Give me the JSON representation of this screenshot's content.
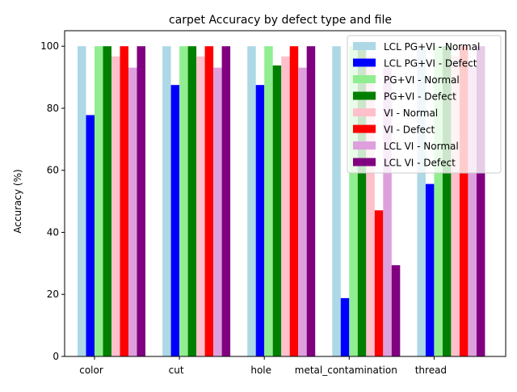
{
  "chart_data": {
    "type": "bar",
    "title": "carpet Accuracy by defect type and file",
    "xlabel": "",
    "ylabel": "Accuracy (%)",
    "ylim": [
      0,
      105
    ],
    "yticks": [
      0,
      20,
      40,
      60,
      80,
      100
    ],
    "grid": false,
    "legend_position": "top-right",
    "categories": [
      "color",
      "cut",
      "hole",
      "metal_contamination",
      "thread"
    ],
    "series": [
      {
        "name": "LCL PG+VI - Normal",
        "color": "#add8e6",
        "values": [
          100,
          100,
          100,
          100,
          100
        ]
      },
      {
        "name": "LCL PG+VI - Defect",
        "color": "#0000ff",
        "values": [
          77.8,
          87.5,
          87.5,
          18.8,
          55.6
        ]
      },
      {
        "name": "PG+VI - Normal",
        "color": "#90ee90",
        "values": [
          100,
          100,
          100,
          100,
          100
        ]
      },
      {
        "name": "PG+VI - Defect",
        "color": "#008000",
        "values": [
          100,
          100,
          93.8,
          100,
          100
        ]
      },
      {
        "name": "VI - Normal",
        "color": "#ffc0cb",
        "values": [
          96.7,
          96.7,
          96.7,
          96.7,
          96.7
        ]
      },
      {
        "name": "VI - Defect",
        "color": "#ff0000",
        "values": [
          100,
          100,
          100,
          47.1,
          100
        ]
      },
      {
        "name": "LCL VI - Normal",
        "color": "#dda0dd",
        "values": [
          93.1,
          93.1,
          93.1,
          93.1,
          93.1
        ]
      },
      {
        "name": "LCL VI - Defect",
        "color": "#800080",
        "values": [
          100,
          100,
          100,
          29.4,
          100
        ]
      }
    ]
  }
}
